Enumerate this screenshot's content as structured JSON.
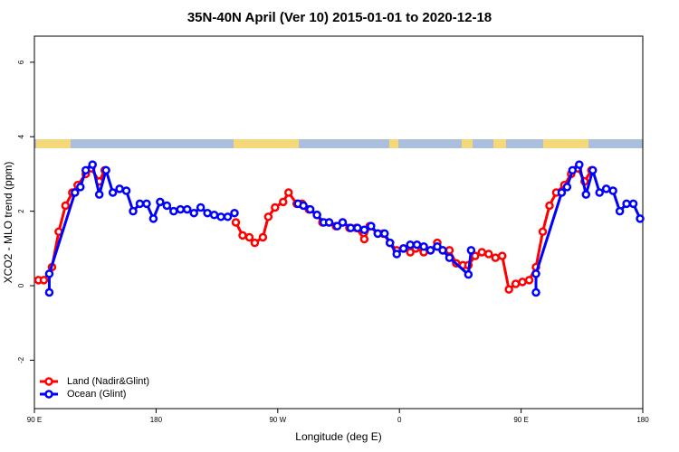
{
  "chart_data": {
    "type": "line",
    "title": "35N-40N April (Ver 10)   2015-01-01 to 2020-12-18",
    "x_label": "Longitude (deg E)",
    "y_label": "XCO2 - MLO trend (ppm)",
    "xlim": [
      90,
      540
    ],
    "xticks": [
      {
        "value": 90,
        "label": "90 E"
      },
      180,
      {
        "value": 270,
        "label": "90 W"
      },
      {
        "value": 360,
        "label": "0"
      },
      {
        "value": 450,
        "label": "90 E"
      },
      {
        "value": 540,
        "label": "180"
      }
    ],
    "ylim": [
      -3.3,
      6.7
    ],
    "yticks": [
      -2,
      0,
      2,
      4,
      6
    ],
    "legend": "bottom-left",
    "series": [
      {
        "name": "Land (Nadir&Glint)",
        "color": "#ff0000",
        "x": [
          93,
          97,
          103,
          108,
          113,
          118,
          122,
          128,
          132,
          138,
          142,
          null,
          239,
          244,
          249,
          253,
          259,
          263,
          268,
          274,
          278,
          284,
          288,
          293,
          299,
          303,
          308,
          313,
          318,
          323,
          328,
          334,
          338,
          344,
          348,
          353,
          358,
          363,
          368,
          372,
          378,
          383,
          388,
          392,
          397,
          402,
          407,
          411,
          416,
          421,
          426,
          431,
          436,
          441,
          446,
          451,
          456,
          461,
          466,
          471,
          476,
          482,
          487,
          492,
          497,
          502
        ],
        "values": [
          0.15,
          0.15,
          0.5,
          1.45,
          2.15,
          2.5,
          2.7,
          3.0,
          3.15,
          2.8,
          3.1,
          null,
          1.7,
          1.35,
          1.3,
          1.15,
          1.3,
          1.85,
          2.1,
          2.25,
          2.5,
          2.2,
          2.2,
          2.05,
          1.9,
          1.7,
          1.7,
          1.6,
          1.7,
          1.55,
          1.55,
          1.25,
          1.6,
          1.4,
          1.4,
          1.15,
          0.95,
          1.0,
          0.9,
          1.0,
          0.9,
          0.95,
          1.15,
          0.95,
          0.95,
          0.6,
          0.55,
          0.55,
          0.8,
          0.9,
          0.85,
          0.75,
          0.8,
          -0.1,
          0.05,
          0.1,
          0.15,
          0.5,
          1.45,
          2.15,
          2.5,
          2.7,
          3.0,
          3.15,
          2.8,
          3.1
        ]
      },
      {
        "name": "Ocean (Glint)",
        "color": "#0000ff",
        "x": [
          101,
          101,
          120,
          124,
          128,
          133,
          138,
          143,
          148,
          153,
          158,
          163,
          168,
          173,
          178,
          183,
          188,
          193,
          198,
          203,
          208,
          213,
          218,
          223,
          228,
          233,
          238,
          null,
          285,
          289,
          294,
          299,
          304,
          308,
          314,
          318,
          324,
          329,
          334,
          339,
          344,
          349,
          353,
          358,
          363,
          368,
          373,
          378,
          383,
          388,
          392,
          397,
          411,
          413,
          null,
          461,
          461,
          480,
          484,
          488,
          493,
          498,
          503,
          508,
          513,
          518,
          523,
          528,
          533,
          538
        ],
        "values": [
          -0.18,
          0.32,
          2.5,
          2.65,
          3.1,
          3.25,
          2.45,
          3.1,
          2.5,
          2.6,
          2.55,
          2.0,
          2.2,
          2.2,
          1.8,
          2.25,
          2.15,
          2.0,
          2.05,
          2.05,
          1.95,
          2.1,
          1.95,
          1.9,
          1.85,
          1.85,
          1.95,
          null,
          2.2,
          2.15,
          2.05,
          1.9,
          1.7,
          1.7,
          1.6,
          1.7,
          1.55,
          1.55,
          1.5,
          1.6,
          1.4,
          1.4,
          1.15,
          0.85,
          1.0,
          1.1,
          1.1,
          1.05,
          0.95,
          1.05,
          0.95,
          0.75,
          0.3,
          0.95,
          null,
          -0.18,
          0.32,
          2.5,
          2.65,
          3.1,
          3.25,
          2.45,
          3.1,
          2.5,
          2.6,
          2.55,
          2.0,
          2.2,
          2.2,
          1.8
        ]
      }
    ]
  }
}
